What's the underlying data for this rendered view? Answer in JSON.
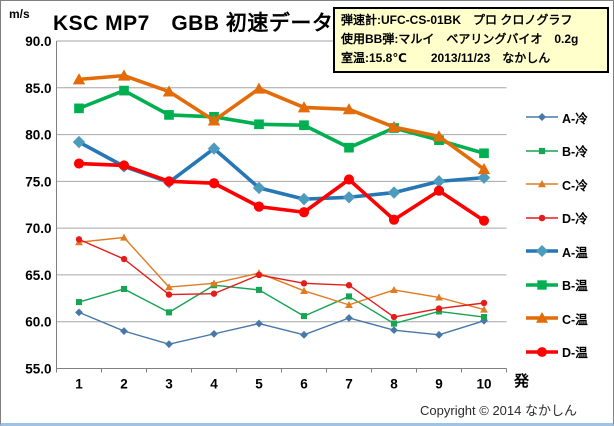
{
  "title": "KSC MP7　GBB 初速データ",
  "y_unit": "m/s",
  "x_axis_label": "発",
  "copyright": "Copyright © 2014 なかしん",
  "info_box": {
    "lines": [
      "弾速計:UFC-CS-01BK　プロ クロノグラフ",
      "使用BB弾:マルイ　ベアリングバイオ　0.2g",
      "室温:15.8℃　　2013/11/23　なかしん"
    ]
  },
  "chart_data": {
    "type": "line",
    "title": "KSC MP7 GBB 初速データ (muzzle velocity, m/s)",
    "x": [
      1,
      2,
      3,
      4,
      5,
      6,
      7,
      8,
      9,
      10
    ],
    "xlabel": "発",
    "ylabel": "m/s",
    "ylim": [
      55,
      90
    ],
    "ytick_step": 5,
    "grid": true,
    "legend_position": "right",
    "series": [
      {
        "name": "A-冷",
        "weight": "thin",
        "marker": "diamond",
        "color": "#4878a8",
        "values": [
          61.0,
          59.0,
          57.6,
          58.7,
          59.8,
          58.6,
          60.4,
          59.1,
          58.6,
          60.1
        ]
      },
      {
        "name": "B-冷",
        "weight": "thin",
        "marker": "square",
        "color": "#17a454",
        "values": [
          62.1,
          63.5,
          61.0,
          63.9,
          63.4,
          60.6,
          62.7,
          59.8,
          61.1,
          60.5
        ]
      },
      {
        "name": "C-冷",
        "weight": "thin",
        "marker": "triangle",
        "color": "#e07b22",
        "values": [
          68.5,
          69.0,
          63.7,
          64.1,
          65.2,
          63.3,
          61.8,
          63.4,
          62.6,
          61.3
        ]
      },
      {
        "name": "D-冷",
        "weight": "thin",
        "marker": "circle",
        "color": "#e51c1c",
        "values": [
          68.8,
          66.7,
          62.9,
          63.0,
          65.0,
          64.1,
          63.9,
          60.5,
          61.4,
          62.0
        ]
      },
      {
        "name": "A-温",
        "weight": "thick",
        "marker": "diamond",
        "color": "#2577b5",
        "marker_color": "#4d9bbd",
        "values": [
          79.2,
          76.6,
          74.9,
          78.5,
          74.3,
          73.1,
          73.3,
          73.8,
          75.0,
          75.4
        ]
      },
      {
        "name": "B-温",
        "weight": "thick",
        "marker": "square",
        "color": "#00b050",
        "values": [
          82.8,
          84.7,
          82.1,
          81.9,
          81.1,
          81.0,
          78.6,
          80.7,
          79.4,
          78.0
        ]
      },
      {
        "name": "C-温",
        "weight": "thick",
        "marker": "triangle",
        "color": "#e36c09",
        "values": [
          85.9,
          86.3,
          84.6,
          81.5,
          84.9,
          82.9,
          82.7,
          80.8,
          79.8,
          76.3
        ]
      },
      {
        "name": "D-温",
        "weight": "thick",
        "marker": "circle",
        "color": "#ff0000",
        "values": [
          76.9,
          76.7,
          75.0,
          74.8,
          72.3,
          71.7,
          75.2,
          70.9,
          74.0,
          70.8
        ]
      }
    ]
  }
}
